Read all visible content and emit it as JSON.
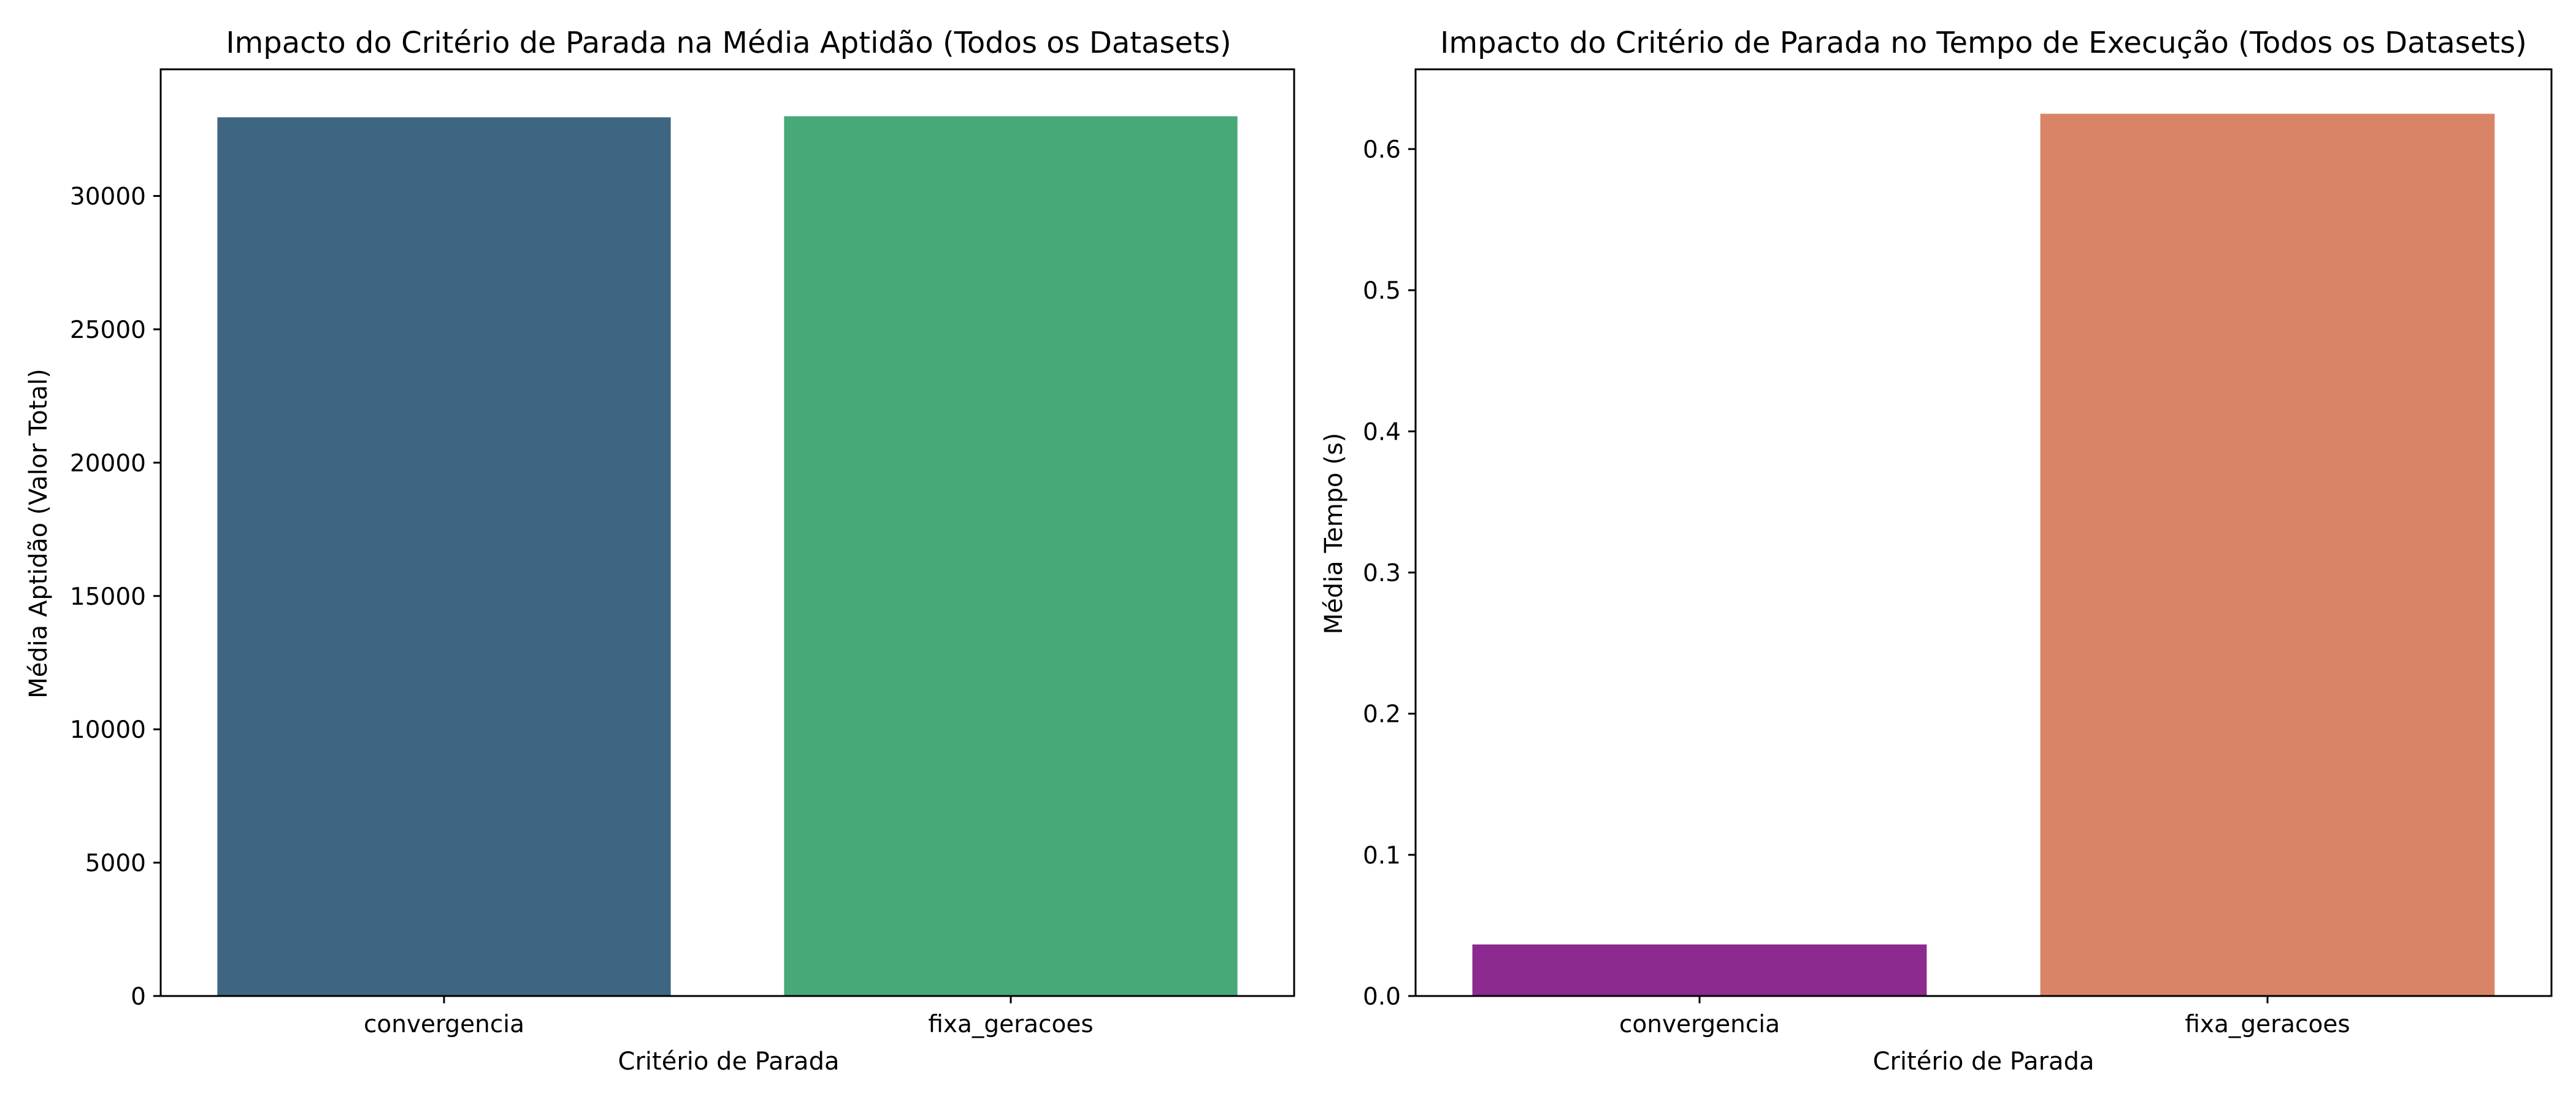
{
  "chart_data": [
    {
      "type": "bar",
      "title": "Impacto do Critério de Parada na Média Aptidão (Todos os Datasets)",
      "xlabel": "Critério de Parada",
      "ylabel": "Média Aptidão (Valor Total)",
      "categories": [
        "convergencia",
        "fixa_geracoes"
      ],
      "values": [
        32950,
        32990
      ],
      "colors": [
        "#3e6682",
        "#47a878"
      ],
      "ylim": [
        0,
        34750
      ],
      "yticks": [
        0,
        5000,
        10000,
        15000,
        20000,
        25000,
        30000
      ],
      "ytick_labels": [
        "0",
        "5000",
        "10000",
        "15000",
        "20000",
        "25000",
        "30000"
      ],
      "grid": false,
      "legend": "none"
    },
    {
      "type": "bar",
      "title": "Impacto do Critério de Parada no Tempo de Execução (Todos os Datasets)",
      "xlabel": "Critério de Parada",
      "ylabel": "Média Tempo (s)",
      "categories": [
        "convergencia",
        "fixa_geracoes"
      ],
      "values": [
        0.0365,
        0.625
      ],
      "colors": [
        "#8c2a8f",
        "#d98466"
      ],
      "ylim": [
        0,
        0.6565
      ],
      "yticks": [
        0.0,
        0.1,
        0.2,
        0.3,
        0.4,
        0.5,
        0.6
      ],
      "ytick_labels": [
        "0.0",
        "0.1",
        "0.2",
        "0.3",
        "0.4",
        "0.5",
        "0.6"
      ],
      "grid": false,
      "legend": "none"
    }
  ]
}
